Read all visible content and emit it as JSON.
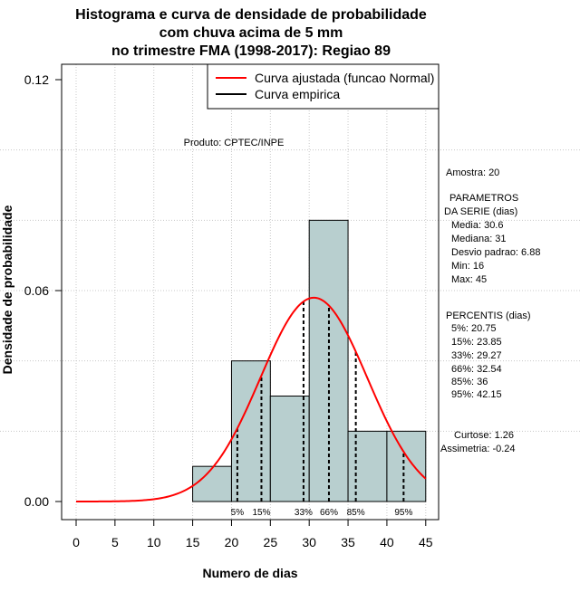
{
  "chart_data": {
    "type": "bar",
    "title_lines": [
      "Histograma e curva de densidade de probabilidade",
      "com chuva acima de 5 mm",
      "no trimestre FMA (1998-2017): Regiao 89"
    ],
    "xlabel": "Numero de dias",
    "ylabel": "Densidade de probabilidade",
    "xlim": [
      -2,
      47
    ],
    "ylim": [
      0,
      0.12
    ],
    "x_ticks": [
      "0",
      "5",
      "10",
      "15",
      "20",
      "25",
      "30",
      "35",
      "40",
      "45"
    ],
    "y_ticks": [
      "0.00",
      "0.06",
      "0.12"
    ],
    "bins": [
      {
        "from": 15,
        "to": 20,
        "density": 0.01
      },
      {
        "from": 20,
        "to": 25,
        "density": 0.04
      },
      {
        "from": 25,
        "to": 30,
        "density": 0.03
      },
      {
        "from": 30,
        "to": 35,
        "density": 0.08
      },
      {
        "from": 35,
        "to": 40,
        "density": 0.02
      },
      {
        "from": 40,
        "to": 45,
        "density": 0.02
      }
    ],
    "normal_fit": {
      "mean": 30.6,
      "sd": 6.88,
      "x_from": 0,
      "x_to": 45
    },
    "percentiles": [
      {
        "label": "5%",
        "value": 20.75
      },
      {
        "label": "15%",
        "value": 23.85
      },
      {
        "label": "33%",
        "value": 29.27
      },
      {
        "label": "66%",
        "value": 32.54
      },
      {
        "label": "85%",
        "value": 36
      },
      {
        "label": "95%",
        "value": 42.15
      }
    ],
    "legend": [
      "Curva ajustada (funcao Normal)",
      "Curva empirica"
    ],
    "colors": {
      "bars": "#b8cfcf",
      "fit_line": "#ff0000",
      "empirical_line": "#000000",
      "grid": "#c8c8c8"
    }
  },
  "product_label": "Produto: CPTEC/INPE",
  "stats": {
    "sample": "Amostra: 20",
    "params_heading_1": "PARAMETROS",
    "params_heading_2": "DA SERIE (dias)",
    "media": "Media: 30.6",
    "mediana": "Mediana: 31",
    "desvio": "Desvio padrao: 6.88",
    "min": "Min: 16",
    "max": "Max: 45",
    "pct_heading": "PERCENTIS (dias)",
    "p5": "5%: 20.75",
    "p15": "15%: 23.85",
    "p33": "33%: 29.27",
    "p66": "66%: 32.54",
    "p85": "85%: 36",
    "p95": "95%: 42.15",
    "curtose": "Curtose: 1.26",
    "assimetria": "Assimetria: -0.24"
  }
}
